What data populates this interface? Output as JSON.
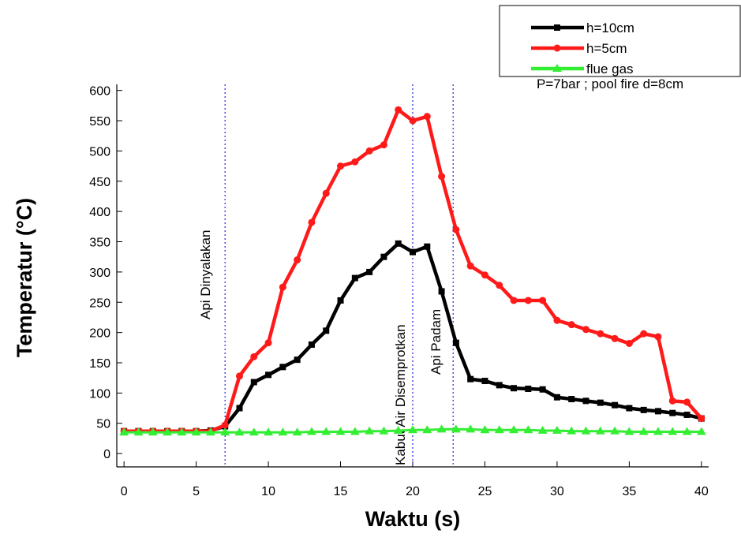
{
  "chart_data": {
    "type": "line",
    "x_label": "Waktu (s)",
    "y_label": "Temperatur (°C)",
    "xlim": [
      -0.5,
      40.5
    ],
    "ylim": [
      -22,
      610
    ],
    "xticks": [
      0,
      5,
      10,
      15,
      20,
      25,
      30,
      35,
      40
    ],
    "yticks": [
      0,
      50,
      100,
      150,
      200,
      250,
      300,
      350,
      400,
      450,
      500,
      550,
      600
    ],
    "legend": "top-right",
    "legend_note": "P=7bar ; pool fire d=8cm",
    "annotations": [
      {
        "x": 7,
        "label": "Api Dinyalakan"
      },
      {
        "x": 20,
        "label": "Kabut Air Disemprotkan"
      },
      {
        "x": 22.8,
        "label": "Api Padam"
      }
    ],
    "x": [
      0,
      1,
      2,
      3,
      4,
      5,
      6,
      7,
      8,
      9,
      10,
      11,
      12,
      13,
      14,
      15,
      16,
      17,
      18,
      19,
      20,
      21,
      22,
      23,
      24,
      25,
      26,
      27,
      28,
      29,
      30,
      31,
      32,
      33,
      34,
      35,
      36,
      37,
      38,
      39,
      40
    ],
    "series": [
      {
        "name": "h=10cm",
        "color": "#000000",
        "marker": "square",
        "values": [
          37,
          37,
          37,
          37,
          37,
          37,
          38,
          45,
          75,
          118,
          130,
          143,
          155,
          180,
          203,
          253,
          290,
          300,
          325,
          347,
          333,
          342,
          268,
          183,
          123,
          120,
          113,
          108,
          107,
          106,
          93,
          90,
          87,
          84,
          80,
          75,
          72,
          70,
          67,
          64,
          58
        ]
      },
      {
        "name": "h=5cm",
        "color": "#ff1a1a",
        "marker": "circle",
        "values": [
          37,
          37,
          37,
          37,
          37,
          37,
          37,
          47,
          128,
          160,
          183,
          275,
          320,
          382,
          430,
          475,
          482,
          500,
          510,
          568,
          550,
          557,
          458,
          370,
          310,
          295,
          278,
          253,
          253,
          253,
          220,
          213,
          205,
          198,
          190,
          182,
          198,
          193,
          87,
          85,
          58
        ]
      },
      {
        "name": "flue gas",
        "color": "#33ee33",
        "marker": "triangle",
        "values": [
          35,
          35,
          35,
          35,
          35,
          35,
          35,
          35,
          35,
          35,
          35,
          35,
          35,
          36,
          36,
          36,
          36,
          37,
          37,
          38,
          39,
          39,
          40,
          40,
          40,
          39,
          39,
          39,
          39,
          38,
          38,
          37,
          37,
          37,
          37,
          36,
          36,
          36,
          36,
          36,
          36
        ]
      }
    ]
  }
}
